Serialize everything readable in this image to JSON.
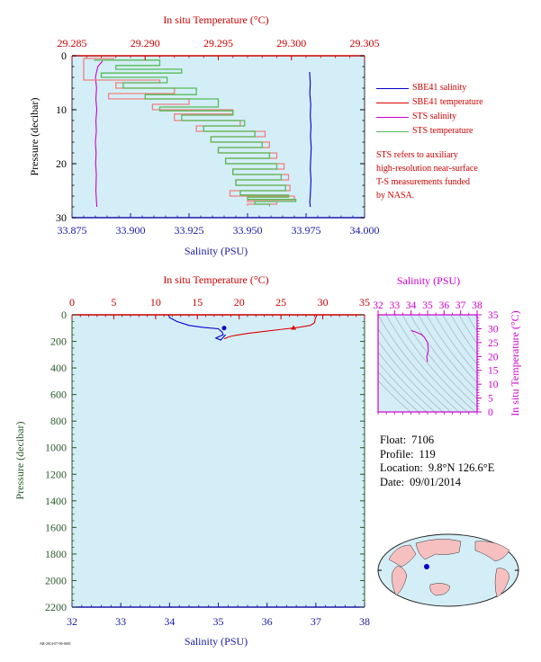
{
  "chart_data": [
    {
      "type": "line",
      "panel": "top",
      "x_bottom": {
        "label": "Salinity (PSU)",
        "ticks": [
          "33.875",
          "33.900",
          "33.925",
          "33.950",
          "33.975",
          "34.000"
        ],
        "range": [
          33.875,
          34.0
        ],
        "color": "#1a1aa6"
      },
      "x_top": {
        "label": "In situ Temperature (°C)",
        "ticks": [
          "29.285",
          "29.290",
          "29.295",
          "29.300",
          "29.305"
        ],
        "range": [
          29.285,
          29.305
        ],
        "color": "#cc0000"
      },
      "y": {
        "label": "Pressure (decibar)",
        "ticks": [
          "0",
          "10",
          "20",
          "30"
        ],
        "range": [
          0,
          30
        ],
        "inverted": true
      },
      "legend": {
        "placement": "right",
        "items": [
          {
            "name": "SBE41 salinity",
            "color": "#0000cc"
          },
          {
            "name": "SBE41 temperature",
            "color": "#dd0000"
          },
          {
            "name": "STS salinity",
            "color": "#cc00cc"
          },
          {
            "name": "STS temperature",
            "color": "#55bb55"
          }
        ]
      },
      "note": [
        "STS refers to auxiliary",
        "high-resolution near-surface",
        "T-S measurements funded",
        "by NASA."
      ],
      "series": [
        {
          "name": "SBE41 salinity",
          "x": [
            33.9765,
            33.9768,
            33.9766,
            33.977,
            33.9768,
            33.9771,
            33.9769,
            33.9772,
            33.977,
            33.9768,
            33.9771,
            33.9769,
            33.9768,
            33.9766,
            33.9768
          ],
          "y": [
            3,
            5,
            7,
            9,
            11,
            13,
            15,
            17,
            19,
            21,
            23,
            25,
            26,
            27,
            28
          ]
        },
        {
          "name": "STS salinity",
          "x": [
            33.888,
            33.886,
            33.885,
            33.8855,
            33.8852,
            33.8856,
            33.8852,
            33.8854,
            33.885,
            33.8853,
            33.8851,
            33.8854,
            33.8852,
            33.8856
          ],
          "y": [
            1,
            2,
            4,
            6,
            8,
            10,
            12,
            14,
            16,
            18,
            20,
            22,
            25,
            28
          ]
        },
        {
          "name": "SBE41 temperature",
          "x": [
            29.2879,
            29.2858,
            29.291,
            29.288,
            29.292,
            29.2875,
            29.293,
            29.2905,
            29.296,
            29.292,
            29.2965,
            29.2935,
            29.2982,
            29.2945,
            29.2985,
            29.295,
            29.299,
            29.2955,
            29.2995,
            29.296,
            29.2998,
            29.2962,
            29.2999,
            29.2958,
            29.3002,
            29.297,
            29.299,
            29.297
          ],
          "y": [
            0.5,
            4.5,
            5.0,
            6.0,
            7.0,
            8.0,
            9.0,
            10.0,
            10.8,
            12.0,
            13.0,
            14.0,
            15.0,
            16.0,
            17.0,
            18.0,
            19.0,
            20.0,
            21.0,
            22.0,
            23.0,
            24.0,
            25.0,
            26.0,
            26.7,
            27.0,
            27.5,
            27.8
          ]
        },
        {
          "name": "STS temperature",
          "x": [
            29.2865,
            29.291,
            29.288,
            29.2925,
            29.287,
            29.2915,
            29.2885,
            29.2935,
            29.29,
            29.295,
            29.291,
            29.296,
            29.2925,
            29.2968,
            29.294,
            29.2975,
            29.2945,
            29.298,
            29.295,
            29.2985,
            29.2955,
            29.299,
            29.296,
            29.2993,
            29.2962,
            29.2996,
            29.2965,
            29.2998,
            29.297,
            29.3003,
            29.2975,
            29.2985
          ],
          "y": [
            0.8,
            1.8,
            2.5,
            3.2,
            4.0,
            5.0,
            6.0,
            7.2,
            8.0,
            9.5,
            10.2,
            11.0,
            12.0,
            13.0,
            14.0,
            15.0,
            16.0,
            17.0,
            18.0,
            19.0,
            20.0,
            21.0,
            22.0,
            23.0,
            24.0,
            25.0,
            25.8,
            26.2,
            26.6,
            27.0,
            27.5,
            27.9
          ]
        }
      ]
    },
    {
      "type": "line",
      "panel": "bottom",
      "x_bottom": {
        "label": "Salinity (PSU)",
        "ticks": [
          "32",
          "33",
          "34",
          "35",
          "36",
          "37",
          "38"
        ],
        "range": [
          32,
          38
        ],
        "color": "#1a1aa6"
      },
      "x_top": {
        "label": "In situ Temperature (°C)",
        "ticks": [
          "0",
          "5",
          "10",
          "15",
          "20",
          "25",
          "30",
          "35"
        ],
        "range": [
          0,
          35
        ],
        "color": "#cc0000"
      },
      "y": {
        "label": "Pressure (decibar)",
        "ticks": [
          "0",
          "200",
          "400",
          "600",
          "800",
          "1000",
          "1200",
          "1400",
          "1600",
          "1800",
          "2000",
          "2200"
        ],
        "range": [
          0,
          2200
        ],
        "inverted": true
      },
      "series": [
        {
          "name": "Salinity",
          "color": "#0000cc",
          "x": [
            33.98,
            34.0,
            34.15,
            34.4,
            34.7,
            35.0,
            35.08,
            35.1,
            34.95,
            35.05,
            35.15
          ],
          "y": [
            0,
            20,
            50,
            80,
            95,
            105,
            130,
            150,
            175,
            190,
            150
          ],
          "endpoint": [
            35.12,
            100
          ]
        },
        {
          "name": "Temperature",
          "color": "#dd0000",
          "x": [
            29.3,
            29.1,
            29.0,
            28.5,
            27.0,
            25.0,
            23.0,
            21.0,
            19.5,
            18.8,
            18.2
          ],
          "y": [
            0,
            30,
            60,
            80,
            95,
            110,
            125,
            140,
            155,
            165,
            180
          ],
          "endpoint": [
            26.5,
            98
          ]
        }
      ]
    },
    {
      "type": "scatter",
      "panel": "ts-diagram",
      "x": {
        "label": "Salinity (PSU)",
        "ticks": [
          "32",
          "33",
          "34",
          "35",
          "36",
          "37",
          "38"
        ],
        "range": [
          32,
          38
        ],
        "position": "top",
        "color": "#cc00cc"
      },
      "y": {
        "label": "In situ Temperature (°C)",
        "ticks": [
          "0",
          "5",
          "10",
          "15",
          "20",
          "25",
          "30",
          "35"
        ],
        "range": [
          0,
          35
        ],
        "position": "right",
        "color": "#cc00cc"
      },
      "series": [
        {
          "name": "T-S",
          "color": "#cc00cc",
          "x": [
            34.0,
            34.2,
            34.6,
            34.8,
            35.0,
            35.05,
            34.95,
            35.0
          ],
          "y": [
            29.3,
            29.0,
            28.0,
            27.0,
            25.0,
            22.0,
            20.0,
            18.0
          ]
        }
      ]
    }
  ],
  "float_info": {
    "float_label": "Float:",
    "float_value": "7106",
    "profile_label": "Profile:",
    "profile_value": "119",
    "location_label": "Location:",
    "location_value": "9.8°N  126.6°E",
    "date_label": "Date:",
    "date_value": "09/01/2014"
  },
  "map": {
    "marker_lat": 9.8,
    "marker_lon": 126.6,
    "marker_color": "#0000cc"
  },
  "colors": {
    "panel_bg": "#d4eef8",
    "axis_red": "#cc0000",
    "axis_blue": "#1a1aa6",
    "axis_green": "#2a5a2a",
    "magenta": "#cc00cc"
  },
  "tiny_label": "AR-2014-07-09-0001"
}
